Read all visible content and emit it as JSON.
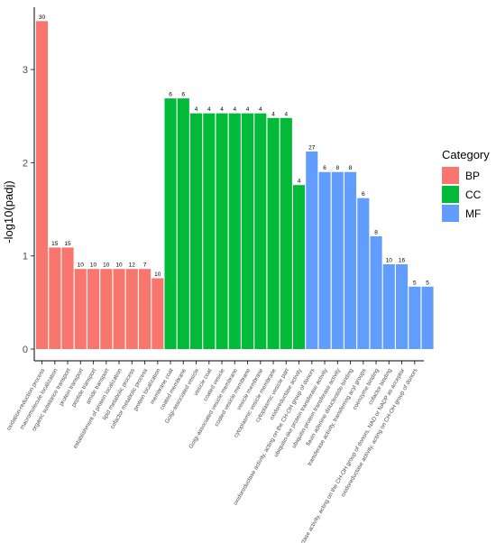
{
  "chart_data": {
    "type": "bar",
    "title": "",
    "xlabel": "",
    "ylabel": "-log10(padj)",
    "ylim": [
      0,
      3.65
    ],
    "yticks": [
      0,
      1,
      2,
      3
    ],
    "grid": false,
    "legend": {
      "title": "Category",
      "placement": "right"
    },
    "colors": {
      "BP": "#F8766D",
      "CC": "#00BA38",
      "MF": "#619CFF"
    },
    "categories_groups": [
      "BP",
      "CC",
      "MF"
    ],
    "bars": [
      {
        "label": "oxidation-reduction process",
        "category": "BP",
        "value": 3.52,
        "count": "30"
      },
      {
        "label": "macromolecule localization",
        "category": "BP",
        "value": 1.09,
        "count": "15"
      },
      {
        "label": "organic substance transport",
        "category": "BP",
        "value": 1.09,
        "count": "15"
      },
      {
        "label": "protein transport",
        "category": "BP",
        "value": 0.86,
        "count": "10"
      },
      {
        "label": "peptide transport",
        "category": "BP",
        "value": 0.86,
        "count": "10"
      },
      {
        "label": "amide transport",
        "category": "BP",
        "value": 0.86,
        "count": "10"
      },
      {
        "label": "establishment of protein localization",
        "category": "BP",
        "value": 0.86,
        "count": "10"
      },
      {
        "label": "lipid metabolic process",
        "category": "BP",
        "value": 0.86,
        "count": "12"
      },
      {
        "label": "cofactor metabolic process",
        "category": "BP",
        "value": 0.86,
        "count": "7"
      },
      {
        "label": "protein localization",
        "category": "BP",
        "value": 0.76,
        "count": "10"
      },
      {
        "label": "membrane coat",
        "category": "CC",
        "value": 2.69,
        "count": "6"
      },
      {
        "label": "coated membrane",
        "category": "CC",
        "value": 2.69,
        "count": "6"
      },
      {
        "label": "Golgi-associated vesicle",
        "category": "CC",
        "value": 2.53,
        "count": "4"
      },
      {
        "label": "vesicle coat",
        "category": "CC",
        "value": 2.53,
        "count": "4"
      },
      {
        "label": "coated vesicle",
        "category": "CC",
        "value": 2.53,
        "count": "4"
      },
      {
        "label": "Golgi-associated vesicle membrane",
        "category": "CC",
        "value": 2.53,
        "count": "4"
      },
      {
        "label": "coated vesicle membrane",
        "category": "CC",
        "value": 2.53,
        "count": "4"
      },
      {
        "label": "vesicle membrane",
        "category": "CC",
        "value": 2.53,
        "count": "4"
      },
      {
        "label": "cytoplasmic vesicle membrane",
        "category": "CC",
        "value": 2.48,
        "count": "4"
      },
      {
        "label": "cytoplasmic vesicle part",
        "category": "CC",
        "value": 2.48,
        "count": "4"
      },
      {
        "label": "oxidoreductase activity",
        "category": "CC",
        "value": 1.76,
        "count": "4"
      },
      {
        "label": "oxidoreductase activity, acting on the CH-OH group of donors",
        "category": "MF",
        "value": 2.12,
        "count": "27"
      },
      {
        "label": "ubiquitin-like protein transferase activity",
        "category": "MF",
        "value": 1.9,
        "count": "6"
      },
      {
        "label": "ubiquitin-protein transferase activity",
        "category": "MF",
        "value": 1.9,
        "count": "8"
      },
      {
        "label": "flavin adenine dinucleotide binding",
        "category": "MF",
        "value": 1.9,
        "count": "8"
      },
      {
        "label": "transferase activity, transferring acyl groups",
        "category": "MF",
        "value": 1.62,
        "count": "6"
      },
      {
        "label": "coenzyme binding",
        "category": "MF",
        "value": 1.21,
        "count": "8"
      },
      {
        "label": "cofactor binding",
        "category": "MF",
        "value": 0.91,
        "count": "10"
      },
      {
        "label": "oxidoreductase activity, acting on the CH-OH group of donors, NAD or NADP as acceptor",
        "category": "MF",
        "value": 0.91,
        "count": "16"
      },
      {
        "label": "oxidoreductase activity, acting on CH-OH group of donors",
        "category": "MF",
        "value": 0.67,
        "count": "5"
      },
      {
        "label": "",
        "category": "MF",
        "value": 0.67,
        "count": "5"
      }
    ]
  }
}
